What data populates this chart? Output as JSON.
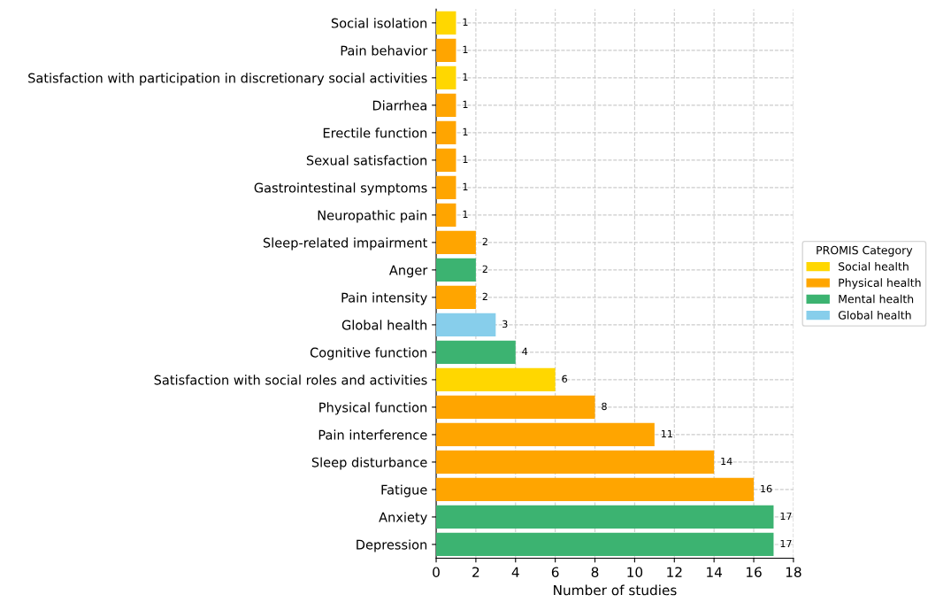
{
  "chart_data": {
    "type": "bar",
    "orientation": "horizontal",
    "xlabel": "Number of studies",
    "legend_title": "PROMIS Category",
    "legend": "right",
    "grid": true,
    "data_labels": true,
    "categories": [
      "Social isolation",
      "Pain behavior",
      "Satisfaction with participation in discretionary social activities",
      "Diarrhea",
      "Erectile function",
      "Sexual satisfaction",
      "Gastrointestinal symptoms",
      "Neuropathic pain",
      "Sleep-related impairment",
      "Anger",
      "Pain intensity",
      "Global health",
      "Cognitive function",
      "Satisfaction with social roles and activities",
      "Physical function",
      "Pain interference",
      "Sleep disturbance",
      "Fatigue",
      "Anxiety",
      "Depression"
    ],
    "series": [
      {
        "name": "Social health",
        "color": "#ffd700",
        "values": [
          1,
          null,
          1,
          null,
          null,
          null,
          null,
          null,
          null,
          null,
          null,
          null,
          null,
          6,
          null,
          null,
          null,
          null,
          null,
          null
        ]
      },
      {
        "name": "Physical health",
        "color": "#ffa500",
        "values": [
          null,
          1,
          null,
          1,
          1,
          1,
          1,
          1,
          2,
          null,
          2,
          null,
          null,
          null,
          8,
          11,
          14,
          16,
          null,
          null
        ]
      },
      {
        "name": "Mental health",
        "color": "#3cb371",
        "values": [
          null,
          null,
          null,
          null,
          null,
          null,
          null,
          null,
          null,
          2,
          null,
          null,
          4,
          null,
          null,
          null,
          null,
          null,
          17,
          17
        ]
      },
      {
        "name": "Global health",
        "color": "#87ceeb",
        "values": [
          null,
          null,
          null,
          null,
          null,
          null,
          null,
          null,
          null,
          null,
          null,
          3,
          null,
          null,
          null,
          null,
          null,
          null,
          null,
          null
        ]
      }
    ],
    "xlim": [
      0,
      18
    ],
    "xticks": [
      0,
      2,
      4,
      6,
      8,
      10,
      12,
      14,
      16,
      18
    ]
  }
}
